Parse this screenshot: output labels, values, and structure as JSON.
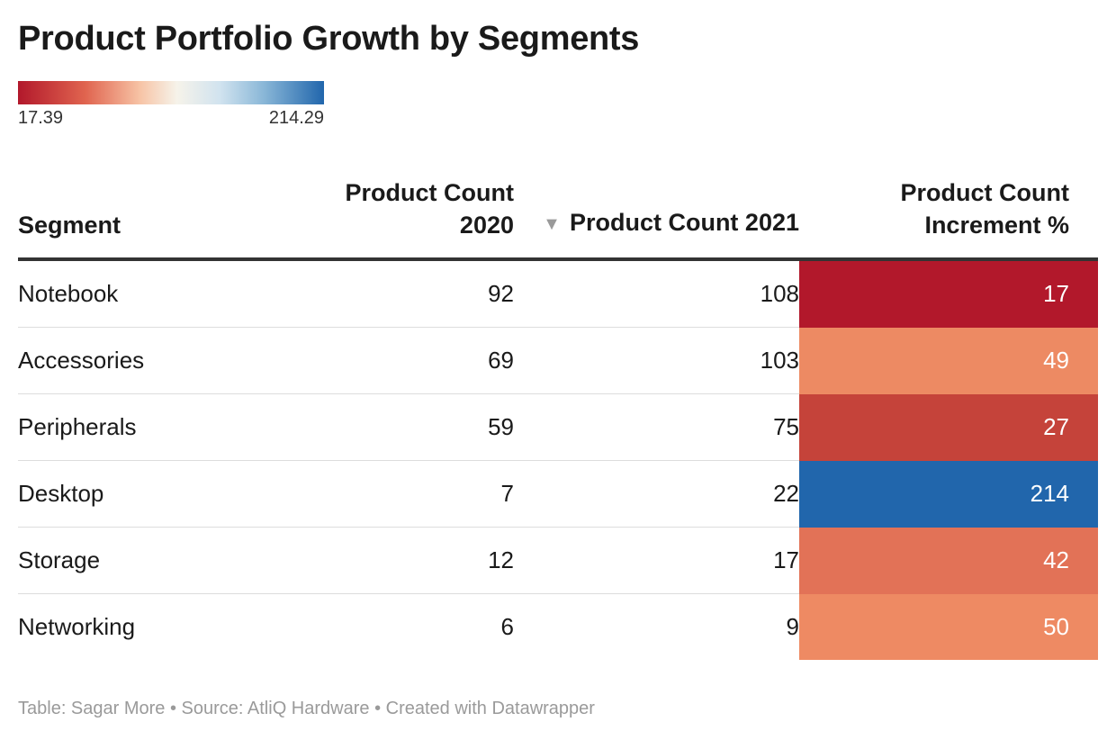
{
  "title": "Product Portfolio Growth by Segments",
  "legend": {
    "min_label": "17.39",
    "max_label": "214.29",
    "min": 17.39,
    "max": 214.29,
    "colors": [
      "#b2182b",
      "#f6f3ea",
      "#2166ac"
    ]
  },
  "table": {
    "headers": {
      "segment": "Segment",
      "count_2020": "Product Count 2020",
      "count_2021": "Product Count 2021",
      "increment": "Product Count Increment %"
    },
    "sort_icon": "sort-descending-icon",
    "rows": [
      {
        "segment": "Notebook",
        "count_2020": "92",
        "count_2021": "108",
        "increment": "17",
        "color": "#b2182b"
      },
      {
        "segment": "Accessories",
        "count_2020": "69",
        "count_2021": "103",
        "increment": "49",
        "color": "#ed8a63"
      },
      {
        "segment": "Peripherals",
        "count_2020": "59",
        "count_2021": "75",
        "increment": "27",
        "color": "#c5433a"
      },
      {
        "segment": "Desktop",
        "count_2020": "7",
        "count_2021": "22",
        "increment": "214",
        "color": "#2166ac"
      },
      {
        "segment": "Storage",
        "count_2020": "12",
        "count_2021": "17",
        "increment": "42",
        "color": "#e27257"
      },
      {
        "segment": "Networking",
        "count_2020": "6",
        "count_2021": "9",
        "increment": "50",
        "color": "#ee8a63"
      }
    ]
  },
  "footer": "Table: Sagar More • Source: AtliQ Hardware • Created with Datawrapper",
  "chart_data": {
    "type": "table",
    "title": "Product Portfolio Growth by Segments",
    "columns": [
      "Segment",
      "Product Count 2020",
      "Product Count 2021",
      "Product Count Increment %"
    ],
    "categories": [
      "Notebook",
      "Accessories",
      "Peripherals",
      "Desktop",
      "Storage",
      "Networking"
    ],
    "series": [
      {
        "name": "Product Count 2020",
        "values": [
          92,
          69,
          59,
          7,
          12,
          6
        ]
      },
      {
        "name": "Product Count 2021",
        "values": [
          108,
          103,
          75,
          22,
          17,
          9
        ]
      },
      {
        "name": "Product Count Increment %",
        "values": [
          17,
          49,
          27,
          214,
          42,
          50
        ]
      }
    ],
    "color_scale": {
      "min": 17.39,
      "max": 214.29
    }
  }
}
